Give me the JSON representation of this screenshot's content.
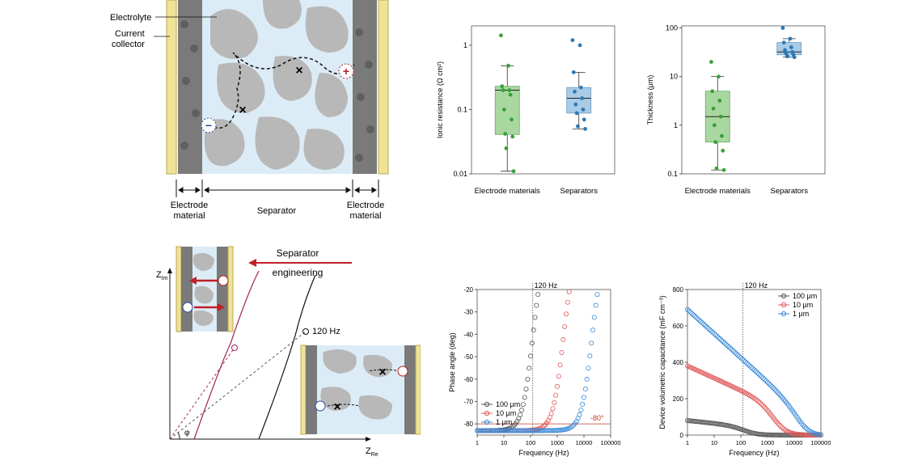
{
  "schematic_top": {
    "label_electrolyte": "Electrolyte",
    "label_current": "Current",
    "label_collector": "collector",
    "label_electrode_left_1": "Electrode",
    "label_electrode_left_2": "material",
    "label_separator": "Separator",
    "label_electrode_right_1": "Electrode",
    "label_electrode_right_2": "material",
    "ion_negative": "−",
    "ion_positive": "+"
  },
  "schematic_bottom": {
    "label_separator_eng_1": "Separator",
    "label_separator_eng_2": "engineering",
    "axis_y": "Z",
    "axis_y_sub": "Im",
    "axis_x": "Z",
    "axis_x_sub": "Re",
    "label_120hz": "120 Hz",
    "label_phi": "φ"
  },
  "chart_data": [
    {
      "id": "ionic-resistance",
      "type": "box",
      "ylabel": "Ionic resistance (Ω cm²)",
      "yscale": "log",
      "ylim": [
        0.01,
        2
      ],
      "yticks": [
        0.01,
        0.1,
        1
      ],
      "ytick_labels": [
        "0.01",
        "0.1",
        "1"
      ],
      "categories": [
        "Electrode materials",
        "Separators"
      ],
      "boxes": [
        {
          "category": "Electrode materials",
          "color": "#a8d8a0",
          "edge": "#6aa86a",
          "point_color": "#39a139",
          "whisker_low": 0.011,
          "q1": 0.041,
          "median": 0.2,
          "q3": 0.23,
          "whisker_high": 0.48,
          "points": [
            1.42,
            0.48,
            0.23,
            0.2,
            0.2,
            0.17,
            0.1,
            0.07,
            0.042,
            0.038,
            0.025,
            0.011
          ]
        },
        {
          "category": "Separators",
          "color": "#a9cbe6",
          "edge": "#6a9cc4",
          "point_color": "#2a7ab8",
          "whisker_low": 0.05,
          "q1": 0.088,
          "median": 0.15,
          "q3": 0.22,
          "whisker_high": 0.38,
          "points": [
            1.2,
            1.0,
            0.38,
            0.22,
            0.19,
            0.15,
            0.12,
            0.1,
            0.088,
            0.07,
            0.055,
            0.05
          ]
        }
      ]
    },
    {
      "id": "thickness",
      "type": "box",
      "ylabel": "Thickness (μm)",
      "yscale": "log",
      "ylim": [
        0.1,
        110
      ],
      "yticks": [
        0.1,
        1,
        10,
        100
      ],
      "ytick_labels": [
        "0.1",
        "1",
        "10",
        "100"
      ],
      "categories": [
        "Electrode materials",
        "Separators"
      ],
      "boxes": [
        {
          "category": "Electrode materials",
          "color": "#a8d8a0",
          "edge": "#6aa86a",
          "point_color": "#39a139",
          "whisker_low": 0.12,
          "q1": 0.45,
          "median": 1.5,
          "q3": 5,
          "whisker_high": 10,
          "points": [
            20,
            10,
            5,
            3.2,
            2.2,
            1.5,
            1.0,
            0.6,
            0.45,
            0.3,
            0.13,
            0.12
          ]
        },
        {
          "category": "Separators",
          "color": "#a9cbe6",
          "edge": "#6a9cc4",
          "point_color": "#2a7ab8",
          "whisker_low": 25,
          "q1": 28,
          "median": 32,
          "q3": 50,
          "whisker_high": 60,
          "points": [
            100,
            60,
            50,
            40,
            35,
            32,
            30,
            28,
            26,
            25
          ]
        }
      ]
    },
    {
      "id": "phase-angle",
      "type": "scatter",
      "xlabel": "Frequency (Hz)",
      "ylabel": "Phase angle (deg)",
      "xscale": "log",
      "xlim": [
        1,
        100000
      ],
      "ylim": [
        -85,
        -20
      ],
      "xticks": [
        1,
        10,
        100,
        1000,
        10000,
        100000
      ],
      "xtick_labels": [
        "1",
        "10",
        "100",
        "1000",
        "10000",
        "100000"
      ],
      "yticks": [
        -80,
        -70,
        -60,
        -50,
        -40,
        -30,
        -20
      ],
      "ytick_labels": [
        "-80",
        "-70",
        "-60",
        "-50",
        "-40",
        "-30",
        "-20"
      ],
      "vline": {
        "x": 120,
        "label": "120 Hz"
      },
      "hline": {
        "y": -80,
        "label": "-80°",
        "color": "#c0392b"
      },
      "series": [
        {
          "name": "100 μm",
          "color": "#555555",
          "fc": 120,
          "amp": 83
        },
        {
          "name": "10  μm",
          "color": "#e05a5a",
          "fc": 1700,
          "amp": 83
        },
        {
          "name": "1    μm",
          "color": "#3a8ad8",
          "fc": 20000,
          "amp": 83
        }
      ],
      "legend": "bottom-left"
    },
    {
      "id": "capacitance",
      "type": "scatter",
      "xlabel": "Frequency (Hz)",
      "ylabel": "Device volumetric capacitance (mF cm⁻³)",
      "xscale": "log",
      "xlim": [
        1,
        100000
      ],
      "ylim": [
        0,
        800
      ],
      "xticks": [
        1,
        10,
        100,
        1000,
        10000,
        100000
      ],
      "xtick_labels": [
        "1",
        "10",
        "100",
        "1000",
        "10000",
        "100000"
      ],
      "yticks": [
        0,
        200,
        400,
        600,
        800
      ],
      "ytick_labels": [
        "0",
        "200",
        "400",
        "600",
        "800"
      ],
      "vline": {
        "x": 120,
        "label": "120 Hz"
      },
      "series": [
        {
          "name": "100 μm",
          "color": "#555555",
          "c0": 80,
          "slope": 0.12,
          "fc": 150
        },
        {
          "name": "10   μm",
          "color": "#e05a5a",
          "c0": 380,
          "slope": 0.11,
          "fc": 2000
        },
        {
          "name": "1     μm",
          "color": "#3a8ad8",
          "c0": 690,
          "slope": 0.12,
          "fc": 20000
        }
      ],
      "legend": "top-right"
    }
  ]
}
